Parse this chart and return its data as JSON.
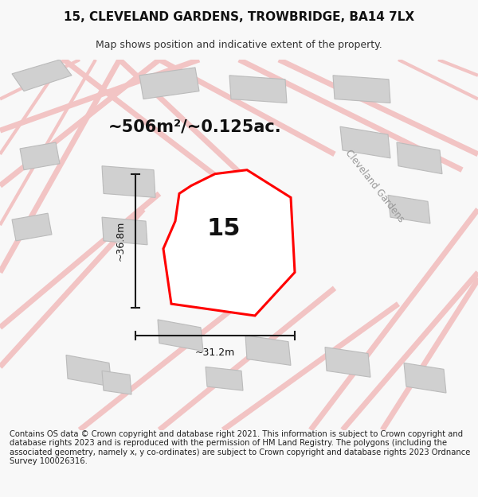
{
  "title": "15, CLEVELAND GARDENS, TROWBRIDGE, BA14 7LX",
  "subtitle": "Map shows position and indicative extent of the property.",
  "area_text": "~506m²/~0.125ac.",
  "width_text": "~31.2m",
  "height_text": "~36.8m",
  "label": "15",
  "footer": "Contains OS data © Crown copyright and database right 2021. This information is subject to Crown copyright and database rights 2023 and is reproduced with the permission of HM Land Registry. The polygons (including the associated geometry, namely x, y co-ordinates) are subject to Crown copyright and database rights 2023 Ordnance Survey 100026316.",
  "bg_color": "#f8f8f8",
  "map_bg": "#ffffff",
  "road_color": "#f2c4c4",
  "building_color": "#d0d0d0",
  "building_edge": "#bbbbbb",
  "plot_color": "#ff0000",
  "plot_fill": "#ffffff",
  "dim_color": "#1a1a1a",
  "text_color": "#333333",
  "road_label_color": "#999999",
  "title_fontsize": 11,
  "subtitle_fontsize": 9,
  "area_fontsize": 15,
  "label_fontsize": 22,
  "footer_fontsize": 7.2
}
